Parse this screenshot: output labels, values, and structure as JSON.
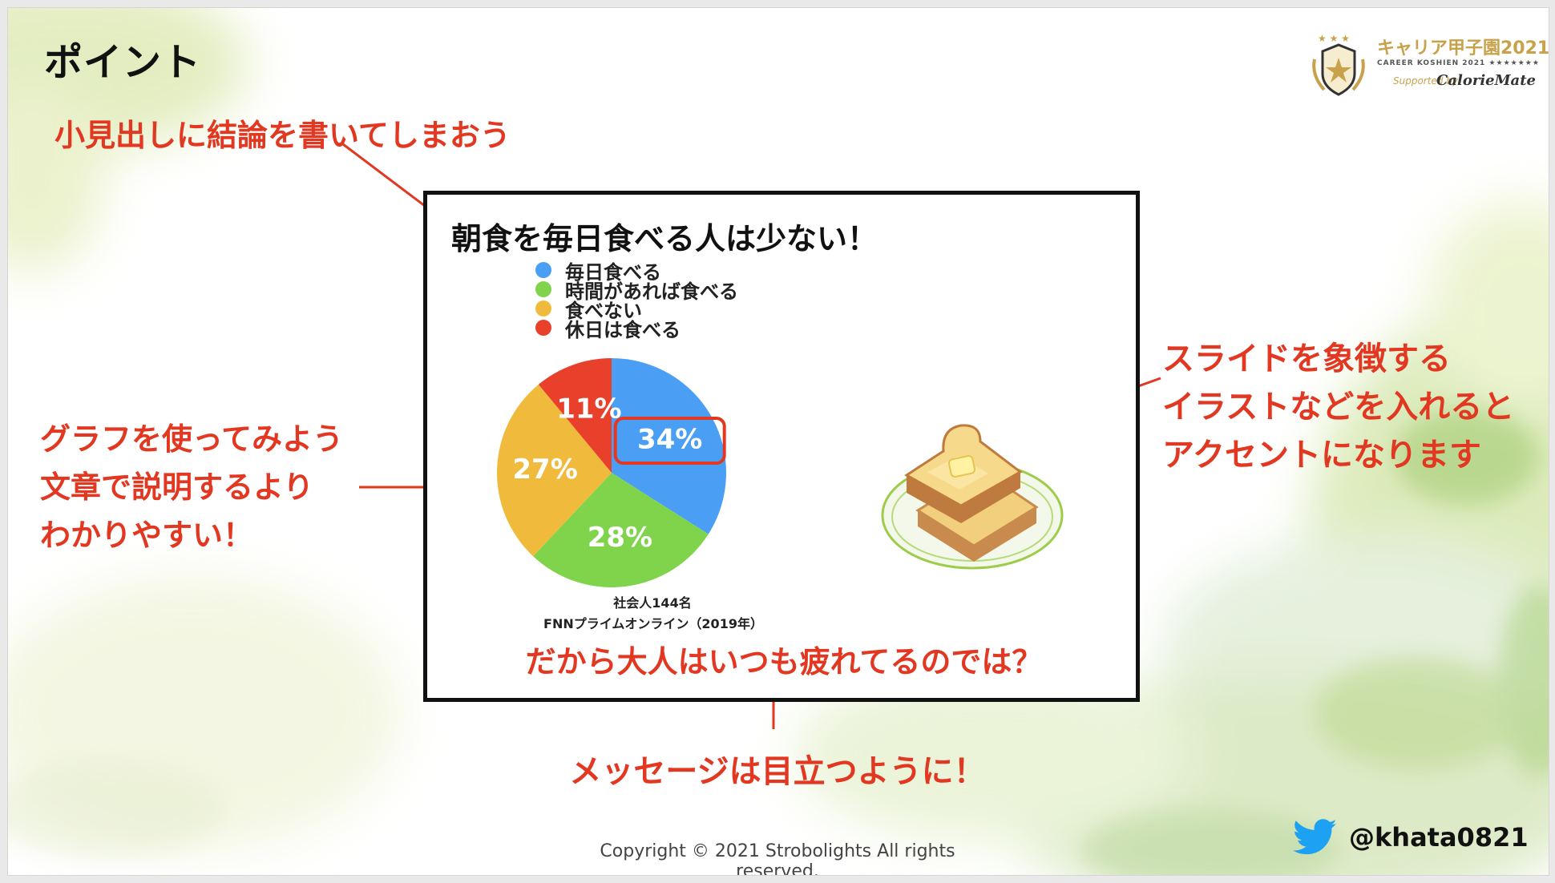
{
  "slide": {
    "title": "ポイント",
    "callouts": {
      "subtitle_tip": "小見出しに結論を書いてしまおう",
      "graph_tip": [
        "グラフを使ってみよう",
        "文章で説明するより",
        "わかりやすい！"
      ],
      "illustration_tip": [
        "スライドを象徴する",
        "イラストなどを入れると",
        "アクセントになります"
      ],
      "message_tip": "メッセージは目立つように！"
    },
    "logo": {
      "title": "キャリア甲子園2021",
      "subtitle": "CAREER KOSHIEN 2021 ★★★★★★★",
      "supported_by": "Supported by",
      "brand": "CalorieMate"
    },
    "footer": {
      "copyright": "Copyright © 2021 Strobolights All rights reserved.",
      "twitter_handle": "@khata0821"
    },
    "colors": {
      "accent_red": "#e23822",
      "text_dark": "#111111",
      "twitter_blue": "#1da1f2"
    }
  },
  "chart_data": {
    "type": "pie",
    "title": "朝食を毎日食べる人は少ない！",
    "categories": [
      "毎日食べる",
      "時間があれば食べる",
      "食べない",
      "休日は食べる"
    ],
    "values": [
      34,
      28,
      27,
      11
    ],
    "value_labels": [
      "34%",
      "28%",
      "27%",
      "11%"
    ],
    "colors": [
      "#4a9ff5",
      "#7fd44c",
      "#f0bb3c",
      "#e8402b"
    ],
    "highlighted_category": "毎日食べる",
    "legend_position": "top",
    "source_lines": [
      "社会人144名",
      "FNNプライムオンライン（2019年）"
    ],
    "message": "だから大人はいつも疲れてるのでは？"
  }
}
